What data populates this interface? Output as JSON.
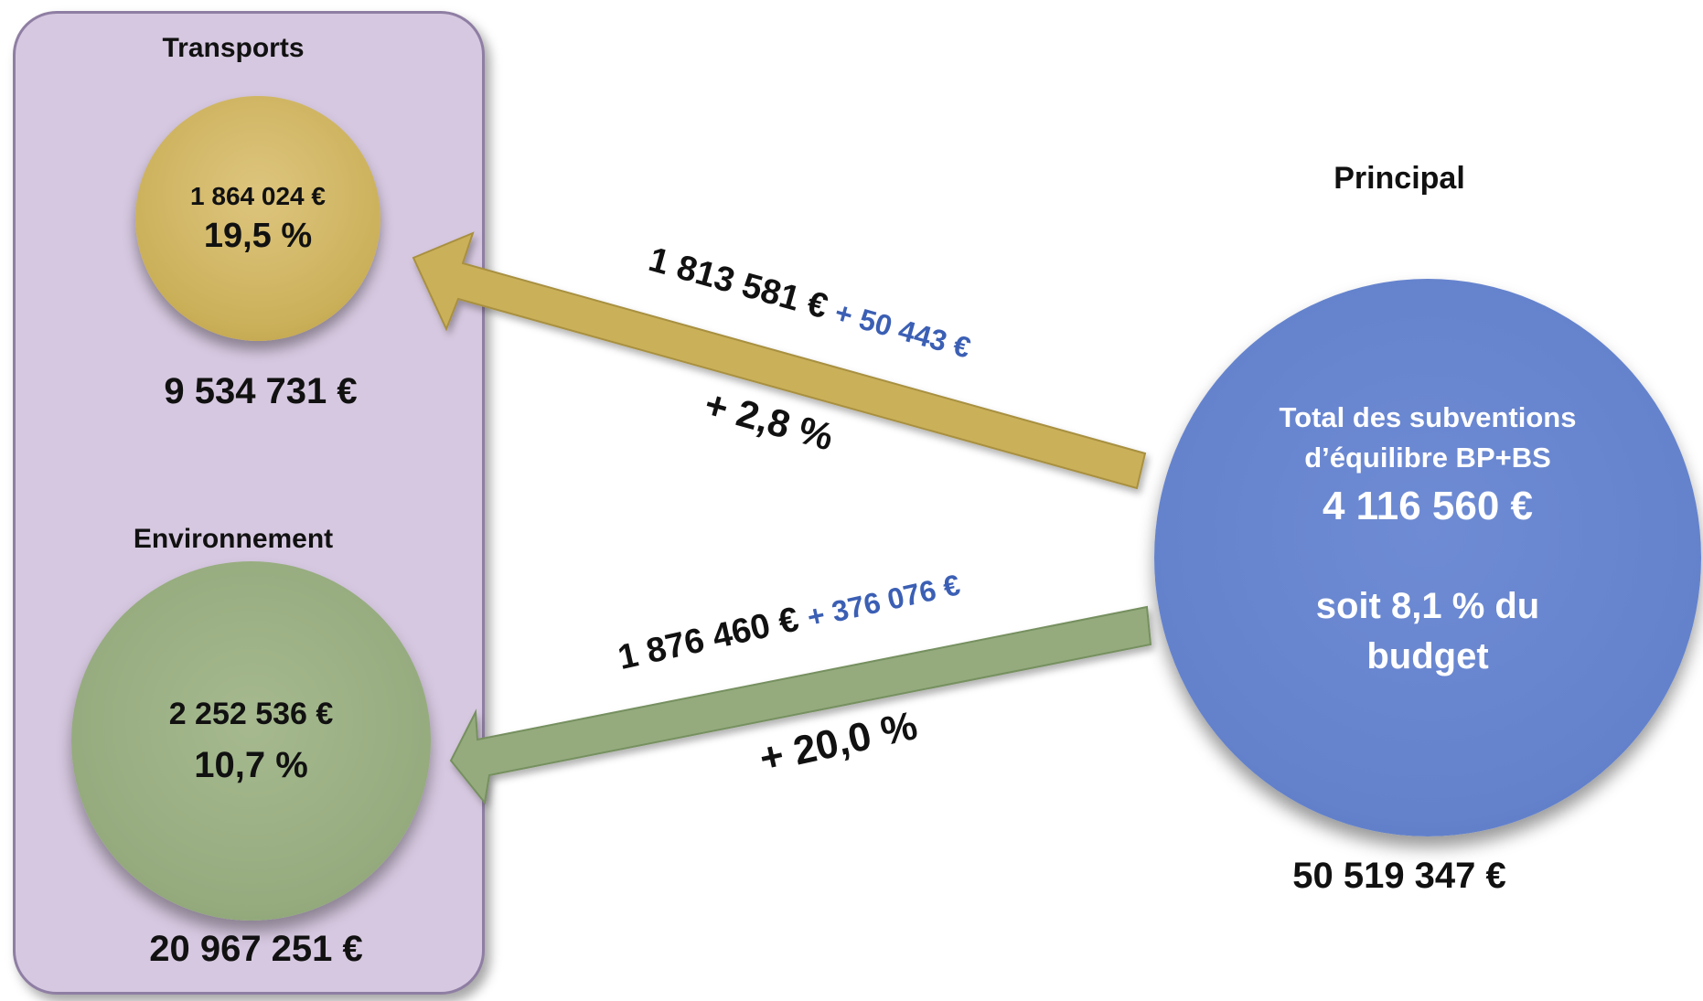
{
  "transports": {
    "title": "Transports",
    "subsidy": "1 864 024 €",
    "percent": "19,5 %",
    "budget": "9 534 731 €",
    "arrow_amount": "1 813 581 €",
    "arrow_delta": "+ 50 443 €",
    "arrow_growth": "+ 2,8 %",
    "color": "#cbb05a"
  },
  "environnement": {
    "title": "Environnement",
    "subsidy": "2 252 536 €",
    "percent": "10,7 %",
    "budget": "20 967 251 €",
    "arrow_amount": "1 876 460 €",
    "arrow_delta": "+ 376 076 €",
    "arrow_growth": "+ 20,0 %",
    "color": "#95ab7e"
  },
  "principal": {
    "title": "Principal",
    "line1": "Total des subventions",
    "line2": "d’équilibre BP+BS",
    "total": "4 116 560 €",
    "share_line1": "soit 8,1 % du",
    "share_line2": "budget",
    "budget": "50 519 347 €",
    "color": "#6482cc"
  },
  "colors": {
    "panel": "#d6c8e0",
    "delta_text": "#3b5fb4"
  }
}
